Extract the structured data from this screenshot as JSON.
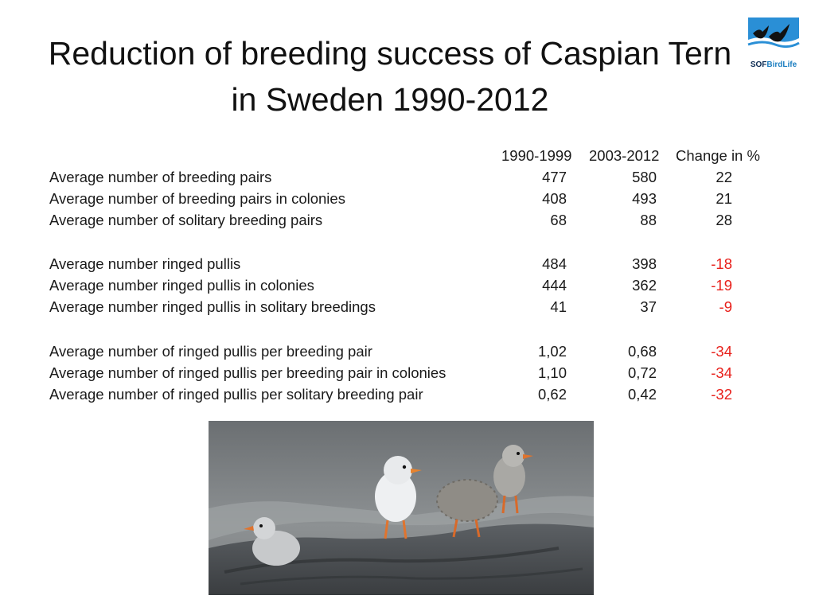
{
  "title": "Reduction of breeding success of Caspian Tern in Sweden 1990-2012",
  "logo": {
    "prefix": "SOF",
    "suffix": "BirdLife",
    "icon": "flying-birds-logo-icon"
  },
  "columns": [
    "1990-1999",
    "2003-2012",
    "Change in %"
  ],
  "rows": [
    {
      "label": "Average number of breeding pairs",
      "v1990": "477",
      "v2003": "580",
      "change": "22"
    },
    {
      "label": "Average number of breeding pairs in colonies",
      "v1990": "408",
      "v2003": "493",
      "change": "21"
    },
    {
      "label": "Average number of solitary breeding pairs",
      "v1990": "68",
      "v2003": "88",
      "change": "28"
    },
    {
      "label": "Average number ringed pullis",
      "v1990": "484",
      "v2003": "398",
      "change": "-18"
    },
    {
      "label": "Average number ringed pullis in colonies",
      "v1990": "444",
      "v2003": "362",
      "change": "-19"
    },
    {
      "label": "Average number ringed pullis in solitary breedings",
      "v1990": "41",
      "v2003": "37",
      "change": "-9"
    },
    {
      "label": "Average number of ringed pullis per breeding pair",
      "v1990": "1,02",
      "v2003": "0,68",
      "change": "-34"
    },
    {
      "label": "Average number of ringed pullis per breeding pair in colonies",
      "v1990": "1,10",
      "v2003": "0,72",
      "change": "-34"
    },
    {
      "label": "Average number of ringed pullis per solitary breeding pair",
      "v1990": "0,62",
      "v2003": "0,42",
      "change": "-32"
    }
  ],
  "colors": {
    "negative": "#e8201b",
    "logo_dark": "#0b2a52",
    "logo_blue": "#1d7fc1"
  },
  "photo": {
    "icon": "caspian-tern-chicks-photo"
  }
}
